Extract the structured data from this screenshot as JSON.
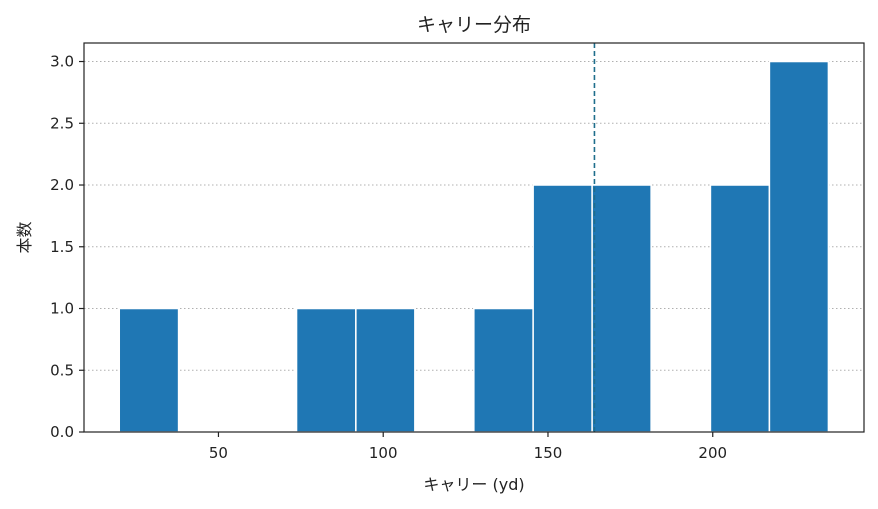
{
  "chart_data": {
    "type": "histogram",
    "title": "キャリー分布",
    "xlabel": "キャリー (yd)",
    "ylabel": "本数",
    "bins": [
      {
        "x0": 19.9,
        "x1": 37.9,
        "count": 1
      },
      {
        "x0": 37.9,
        "x1": 55.8,
        "count": 0
      },
      {
        "x0": 55.8,
        "x1": 73.7,
        "count": 0
      },
      {
        "x0": 73.7,
        "x1": 91.7,
        "count": 1
      },
      {
        "x0": 91.7,
        "x1": 109.6,
        "count": 1
      },
      {
        "x0": 109.6,
        "x1": 127.5,
        "count": 0
      },
      {
        "x0": 127.5,
        "x1": 145.5,
        "count": 1
      },
      {
        "x0": 145.5,
        "x1": 163.4,
        "count": 2
      },
      {
        "x0": 163.4,
        "x1": 181.3,
        "count": 2
      },
      {
        "x0": 181.3,
        "x1": 199.3,
        "count": 0
      },
      {
        "x0": 199.3,
        "x1": 217.2,
        "count": 2
      },
      {
        "x0": 217.2,
        "x1": 235.1,
        "count": 3
      }
    ],
    "mean_line": {
      "x": 164.1,
      "color": "#1f6e8c",
      "style": "dashed"
    },
    "xlim": [
      9.2,
      245.9
    ],
    "ylim": [
      0,
      3.15
    ],
    "xticks": [
      50,
      100,
      150,
      200
    ],
    "xtick_labels": [
      "50",
      "100",
      "150",
      "200"
    ],
    "yticks": [
      0,
      0.5,
      1,
      1.5,
      2,
      2.5,
      3
    ],
    "ytick_labels": [
      "0.0",
      "0.5",
      "1.0",
      "1.5",
      "2.0",
      "2.5",
      "3.0"
    ],
    "grid": {
      "axis": "y",
      "style": "dotted",
      "color": "#b0b0b0"
    },
    "bar_color": "#1f77b4",
    "bar_edge_color": "#ffffff"
  }
}
